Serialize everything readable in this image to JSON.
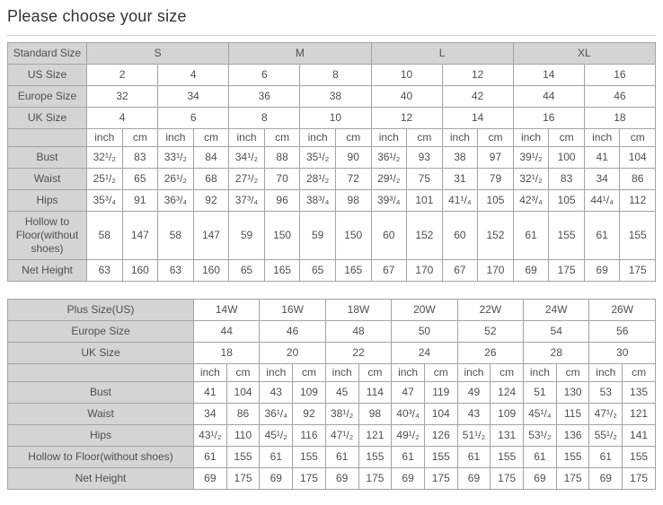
{
  "title": "Please choose your size",
  "colors": {
    "header_bg": "#d4d4d4",
    "border": "#a3a3a3",
    "text": "#4f4f4f",
    "title_color": "#333333",
    "divider": "#cfcfcf"
  },
  "standard_table": {
    "group_row": {
      "label": "Standard Size",
      "span": 4,
      "cells": [
        "S",
        "M",
        "L",
        "XL"
      ]
    },
    "pair_rows": [
      {
        "label": "US Size",
        "values": [
          "2",
          "4",
          "6",
          "8",
          "10",
          "12",
          "14",
          "16"
        ]
      },
      {
        "label": "Europe Size",
        "values": [
          "32",
          "34",
          "36",
          "38",
          "40",
          "42",
          "44",
          "46"
        ]
      },
      {
        "label": "UK Size",
        "values": [
          "4",
          "6",
          "8",
          "10",
          "12",
          "14",
          "16",
          "18"
        ]
      }
    ],
    "unit_row": {
      "label": "",
      "units": [
        "inch",
        "cm"
      ],
      "repeat": 8
    },
    "measure_rows": [
      {
        "label": "Bust",
        "values": [
          "32¹/₂",
          "83",
          "33¹/₂",
          "84",
          "34¹/₂",
          "88",
          "35¹/₂",
          "90",
          "36¹/₂",
          "93",
          "38",
          "97",
          "39¹/₂",
          "100",
          "41",
          "104"
        ]
      },
      {
        "label": "Waist",
        "values": [
          "25¹/₂",
          "65",
          "26¹/₂",
          "68",
          "27¹/₂",
          "70",
          "28¹/₂",
          "72",
          "29¹/₂",
          "75",
          "31",
          "79",
          "32¹/₂",
          "83",
          "34",
          "86"
        ]
      },
      {
        "label": "Hips",
        "values": [
          "35³/₄",
          "91",
          "36³/₄",
          "92",
          "37³/₄",
          "96",
          "38³/₄",
          "98",
          "39³/₄",
          "101",
          "41¹/₄",
          "105",
          "42³/₄",
          "105",
          "44¹/₄",
          "112"
        ]
      },
      {
        "label": "Hollow to Floor(without shoes)",
        "values": [
          "58",
          "147",
          "58",
          "147",
          "59",
          "150",
          "59",
          "150",
          "60",
          "152",
          "60",
          "152",
          "61",
          "155",
          "61",
          "155"
        ]
      },
      {
        "label": "Net Height",
        "values": [
          "63",
          "160",
          "63",
          "160",
          "65",
          "165",
          "65",
          "165",
          "67",
          "170",
          "67",
          "170",
          "69",
          "175",
          "69",
          "175"
        ]
      }
    ]
  },
  "plus_table": {
    "pair_rows": [
      {
        "label": "Plus Size(US)",
        "values": [
          "14W",
          "16W",
          "18W",
          "20W",
          "22W",
          "24W",
          "26W"
        ]
      },
      {
        "label": "Europe Size",
        "values": [
          "44",
          "46",
          "48",
          "50",
          "52",
          "54",
          "56"
        ]
      },
      {
        "label": "UK Size",
        "values": [
          "18",
          "20",
          "22",
          "24",
          "26",
          "28",
          "30"
        ]
      }
    ],
    "unit_row": {
      "label": "",
      "units": [
        "inch",
        "cm"
      ],
      "repeat": 7
    },
    "measure_rows": [
      {
        "label": "Bust",
        "values": [
          "41",
          "104",
          "43",
          "109",
          "45",
          "114",
          "47",
          "119",
          "49",
          "124",
          "51",
          "130",
          "53",
          "135"
        ]
      },
      {
        "label": "Waist",
        "values": [
          "34",
          "86",
          "36¹/₄",
          "92",
          "38¹/₂",
          "98",
          "40³/₄",
          "104",
          "43",
          "109",
          "45¹/₄",
          "115",
          "47¹/₂",
          "121"
        ]
      },
      {
        "label": "Hips",
        "values": [
          "43¹/₂",
          "110",
          "45¹/₂",
          "116",
          "47¹/₂",
          "121",
          "49¹/₂",
          "126",
          "51¹/₂",
          "131",
          "53¹/₂",
          "136",
          "55¹/₂",
          "141"
        ]
      },
      {
        "label": "Hollow to Floor(without shoes)",
        "values": [
          "61",
          "155",
          "61",
          "155",
          "61",
          "155",
          "61",
          "155",
          "61",
          "155",
          "61",
          "155",
          "61",
          "155"
        ]
      },
      {
        "label": "Net Height",
        "values": [
          "69",
          "175",
          "69",
          "175",
          "69",
          "175",
          "69",
          "175",
          "69",
          "175",
          "69",
          "175",
          "69",
          "175"
        ]
      }
    ]
  }
}
